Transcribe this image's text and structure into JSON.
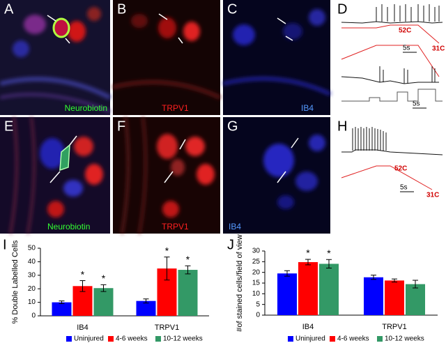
{
  "panels": [
    {
      "letter": "A",
      "label": "Neurobiotin"
    },
    {
      "letter": "B",
      "label": "TRPV1"
    },
    {
      "letter": "C",
      "label": "IB4"
    },
    {
      "letter": "D",
      "labels": [
        "52C",
        "31C",
        "5s",
        "5s"
      ]
    },
    {
      "letter": "E",
      "label": "Neurobiotin"
    },
    {
      "letter": "F",
      "label": "TRPV1"
    },
    {
      "letter": "G",
      "label": "IB4"
    },
    {
      "letter": "H",
      "labels": [
        "52C",
        "31C",
        "5s"
      ]
    }
  ],
  "chart_data": [
    {
      "type": "bar",
      "panel_label": "I",
      "y_label": "% Double Labelled Cells",
      "categories": [
        "IB4",
        "TRPV1"
      ],
      "series": [
        {
          "name": "Uninjured",
          "color": "#0000ff",
          "values": [
            10,
            11
          ],
          "errors": [
            1,
            1.5
          ],
          "labels": [
            null,
            null
          ]
        },
        {
          "name": "4-6 weeks",
          "color": "#ff0000",
          "values": [
            22,
            35
          ],
          "errors": [
            4,
            8.5
          ],
          "labels": [
            "*",
            "*"
          ]
        },
        {
          "name": "10-12 weeks",
          "color": "#339966",
          "values": [
            20.5,
            34
          ],
          "errors": [
            2.5,
            3
          ],
          "labels": [
            "*",
            "*"
          ]
        }
      ],
      "ylim": [
        0,
        50
      ],
      "yticks": [
        0,
        10,
        20,
        30,
        40,
        50
      ]
    },
    {
      "type": "bar",
      "panel_label": "J",
      "y_label": "#of stained cells/field of view",
      "categories": [
        "IB4",
        "TRPV1"
      ],
      "series": [
        {
          "name": "Uninjured",
          "color": "#0000ff",
          "values": [
            19.5,
            17.7
          ],
          "errors": [
            1.3,
            1
          ],
          "labels": [
            null,
            null
          ]
        },
        {
          "name": "4-6 weeks",
          "color": "#ff0000",
          "values": [
            24.8,
            16.2
          ],
          "errors": [
            1.3,
            0.7
          ],
          "labels": [
            "*",
            null
          ]
        },
        {
          "name": "10-12 weeks",
          "color": "#339966",
          "values": [
            24,
            14.5
          ],
          "errors": [
            2,
            1.8
          ],
          "labels": [
            "*",
            null
          ]
        }
      ],
      "ylim": [
        0,
        30
      ],
      "yticks": [
        0,
        5,
        10,
        15,
        20,
        25,
        30
      ]
    }
  ]
}
